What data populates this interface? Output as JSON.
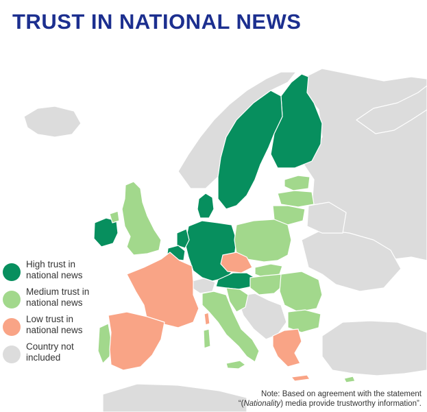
{
  "title": "TRUST IN NATIONAL NEWS",
  "colors": {
    "high": "#078f5e",
    "medium": "#a2d88c",
    "low": "#f9a486",
    "excluded": "#dcdcdc",
    "sea": "#ffffff",
    "border": "#ffffff",
    "title": "#1c2f8f"
  },
  "legend": [
    {
      "key": "high",
      "label": "High trust in\nnational news",
      "color": "#078f5e"
    },
    {
      "key": "medium",
      "label": "Medium trust in\nnational news",
      "color": "#a2d88c"
    },
    {
      "key": "low",
      "label": "Low trust in\nnational news",
      "color": "#f9a486"
    },
    {
      "key": "excluded",
      "label": "Country not\nincluded",
      "color": "#dcdcdc"
    }
  ],
  "note": {
    "line1": "Note: Based on agreement with the statement",
    "line2_prefix": "“(",
    "line2_italic": "Nationality",
    "line2_suffix": ") media provide trustworthy information”."
  }
}
